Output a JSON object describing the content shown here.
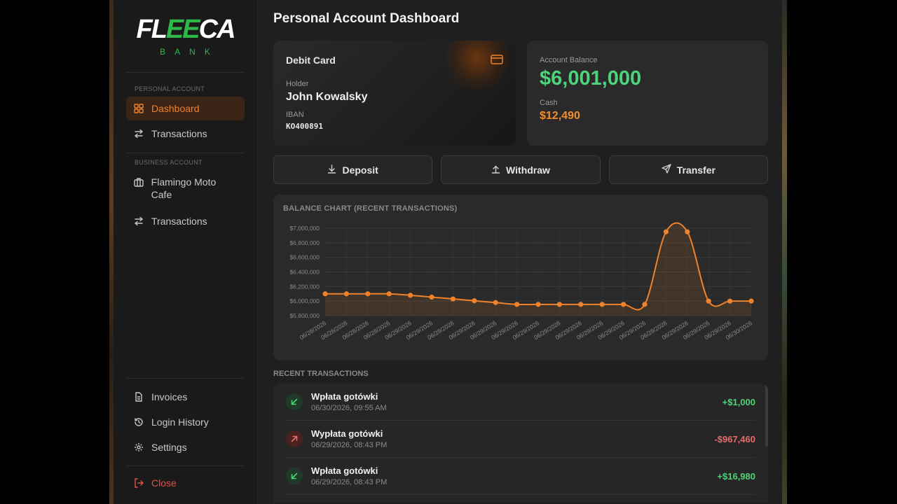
{
  "brand": {
    "logo_left": "FL",
    "logo_mid": "EE",
    "logo_right": "CA",
    "logo_sub": "BANK"
  },
  "sidebar": {
    "personal_label": "PERSONAL ACCOUNT",
    "personal_items": [
      {
        "label": "Dashboard",
        "icon": "grid-icon",
        "active": true
      },
      {
        "label": "Transactions",
        "icon": "arrows-icon"
      }
    ],
    "business_label": "BUSINESS ACCOUNT",
    "business_items": [
      {
        "label": "Flamingo Moto Cafe",
        "icon": "briefcase-icon"
      },
      {
        "label": "Transactions",
        "icon": "arrows-icon"
      }
    ],
    "bottom_items": [
      {
        "label": "Invoices",
        "icon": "document-icon"
      },
      {
        "label": "Login History",
        "icon": "history-icon"
      },
      {
        "label": "Settings",
        "icon": "gear-icon"
      }
    ],
    "close_label": "Close"
  },
  "main": {
    "title": "Personal Account Dashboard",
    "card": {
      "title": "Debit Card",
      "holder_label": "Holder",
      "holder": "John Kowalsky",
      "iban_label": "IBAN",
      "iban": "KO400891"
    },
    "balance": {
      "label": "Account Balance",
      "amount": "$6,001,000",
      "cash_label": "Cash",
      "cash": "$12,490"
    },
    "actions": {
      "deposit": "Deposit",
      "withdraw": "Withdraw",
      "transfer": "Transfer"
    },
    "chart_title": "BALANCE CHART (RECENT TRANSACTIONS)",
    "recent_label": "RECENT TRANSACTIONS",
    "transactions": [
      {
        "name": "Wpłata gotówki",
        "date": "06/30/2026, 09:55 AM",
        "amount": "+$1,000",
        "dir": "in"
      },
      {
        "name": "Wypłata gotówki",
        "date": "06/29/2026, 08:43 PM",
        "amount": "-$967,460",
        "dir": "out"
      },
      {
        "name": "Wpłata gotówki",
        "date": "06/29/2026, 08:43 PM",
        "amount": "+$16,980",
        "dir": "in"
      }
    ]
  },
  "colors": {
    "accent": "#f0822c",
    "positive": "#4ed37a",
    "negative": "#e86a6a",
    "brand_green": "#2eb84a"
  },
  "chart_data": {
    "type": "line",
    "title": "BALANCE CHART (RECENT TRANSACTIONS)",
    "x": [
      "06/28/2026",
      "06/28/2026",
      "06/28/2026",
      "06/28/2026",
      "06/29/2026",
      "06/29/2026",
      "06/29/2026",
      "06/29/2026",
      "06/29/2026",
      "06/29/2026",
      "06/29/2026",
      "06/29/2026",
      "06/29/2026",
      "06/29/2026",
      "06/29/2026",
      "06/29/2026",
      "06/29/2026",
      "06/29/2026",
      "06/29/2026",
      "06/29/2026",
      "06/30/2026"
    ],
    "values": [
      6100000,
      6100000,
      6100000,
      6100000,
      6080000,
      6055000,
      6030000,
      6005000,
      5980000,
      5955000,
      5955000,
      5955000,
      5955000,
      5955000,
      5955000,
      5955000,
      6950000,
      6950000,
      6000000,
      6000000,
      6001000
    ],
    "y_ticks": [
      "$5,800,000",
      "$6,000,000",
      "$6,200,000",
      "$6,400,000",
      "$6,600,000",
      "$6,800,000",
      "$7,000,000"
    ],
    "ylim": [
      5800000,
      7000000
    ],
    "grid": true,
    "xlabel": "",
    "ylabel": ""
  }
}
